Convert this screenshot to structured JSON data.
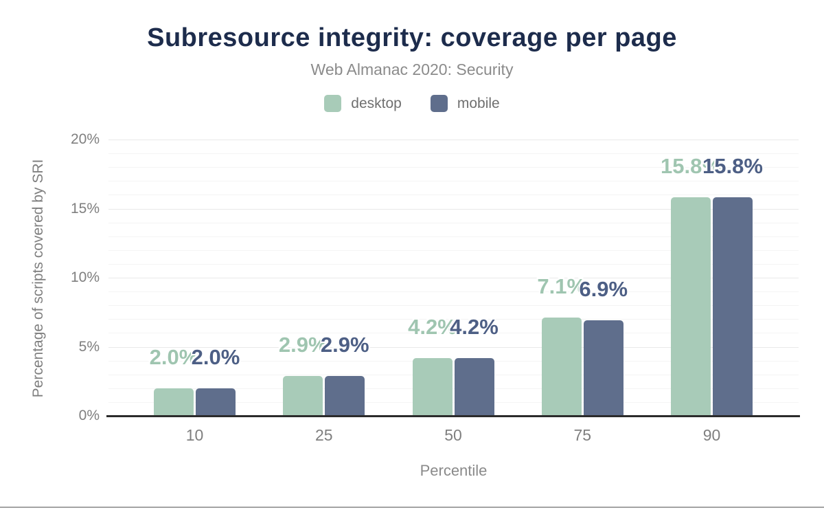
{
  "header": {
    "title": "Subresource integrity: coverage per page",
    "subtitle": "Web Almanac 2020: Security"
  },
  "chart_data": {
    "type": "bar",
    "title": "Subresource integrity: coverage per page",
    "subtitle": "Web Almanac 2020: Security",
    "categories": [
      "10",
      "25",
      "50",
      "75",
      "90"
    ],
    "series": [
      {
        "name": "desktop",
        "color": "#a8cbb8",
        "label_color": "#9fc5b0",
        "values": [
          2.0,
          2.9,
          4.2,
          7.1,
          15.8
        ],
        "labels": [
          "2.0%",
          "2.9%",
          "4.2%",
          "7.1%",
          "15.8%"
        ]
      },
      {
        "name": "mobile",
        "color": "#5f6e8c",
        "label_color": "#4d5f85",
        "values": [
          2.0,
          2.9,
          4.2,
          6.9,
          15.8
        ],
        "labels": [
          "2.0%",
          "2.9%",
          "4.2%",
          "6.9%",
          "15.8%"
        ]
      }
    ],
    "xlabel": "Percentile",
    "ylabel": "Percentage of scripts covered by SRI",
    "ylim": [
      0,
      20
    ],
    "yticks": [
      {
        "value": 0,
        "label": "0%"
      },
      {
        "value": 5,
        "label": "5%"
      },
      {
        "value": 10,
        "label": "10%"
      },
      {
        "value": 15,
        "label": "15%"
      },
      {
        "value": 20,
        "label": "20%"
      }
    ],
    "grid": "horizontal; minor gridline every 1%, major gridline every 5%",
    "legend_position": "top-center",
    "title_color": "#1d2c4c",
    "axis_text_color": "#7f7f7f"
  }
}
